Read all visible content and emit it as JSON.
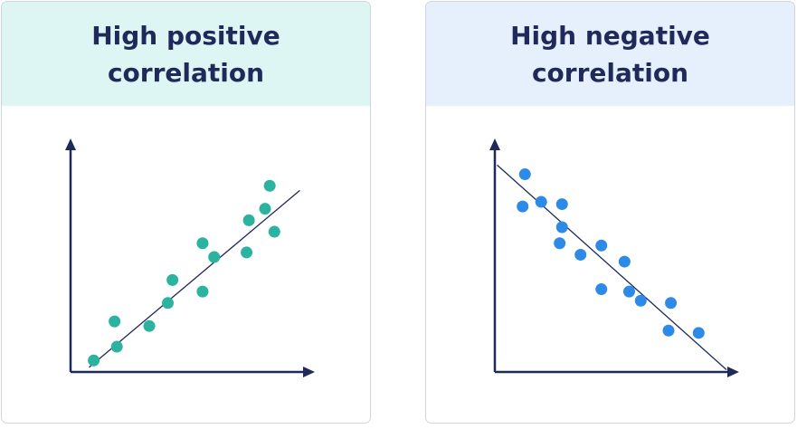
{
  "colors": {
    "axis": "#1f2a5a",
    "text": "#1f2a5a",
    "positive_points": "#2bb3a0",
    "negative_points": "#2d8ae6",
    "positive_header_bg": "#ddf5f3",
    "negative_header_bg": "#e6f0fc"
  },
  "chart_data": [
    {
      "type": "scatter",
      "title": "High positive\ncorrelation",
      "xlabel": "",
      "ylabel": "",
      "xlim": [
        0,
        100
      ],
      "ylim": [
        0,
        100
      ],
      "axis_ticks": false,
      "trend_line": [
        [
          8,
          2
        ],
        [
          99,
          79
        ]
      ],
      "points": [
        {
          "x": 10,
          "y": 5
        },
        {
          "x": 20,
          "y": 11
        },
        {
          "x": 19,
          "y": 22
        },
        {
          "x": 34,
          "y": 20
        },
        {
          "x": 42,
          "y": 30
        },
        {
          "x": 44,
          "y": 40
        },
        {
          "x": 57,
          "y": 35
        },
        {
          "x": 57,
          "y": 56
        },
        {
          "x": 62,
          "y": 50
        },
        {
          "x": 76,
          "y": 52
        },
        {
          "x": 77,
          "y": 66
        },
        {
          "x": 84,
          "y": 71
        },
        {
          "x": 86,
          "y": 81
        },
        {
          "x": 88,
          "y": 61
        }
      ]
    },
    {
      "type": "scatter",
      "title": "High negative\ncorrelation",
      "xlabel": "",
      "ylabel": "",
      "xlim": [
        0,
        100
      ],
      "ylim": [
        0,
        100
      ],
      "axis_ticks": false,
      "trend_line": [
        [
          1,
          90
        ],
        [
          100,
          1
        ]
      ],
      "points": [
        {
          "x": 13,
          "y": 86
        },
        {
          "x": 12,
          "y": 72
        },
        {
          "x": 20,
          "y": 74
        },
        {
          "x": 29,
          "y": 73
        },
        {
          "x": 29,
          "y": 63
        },
        {
          "x": 28,
          "y": 56
        },
        {
          "x": 37,
          "y": 51
        },
        {
          "x": 46,
          "y": 55
        },
        {
          "x": 56,
          "y": 48
        },
        {
          "x": 46,
          "y": 36
        },
        {
          "x": 58,
          "y": 35
        },
        {
          "x": 63,
          "y": 31
        },
        {
          "x": 76,
          "y": 30
        },
        {
          "x": 75,
          "y": 18
        },
        {
          "x": 88,
          "y": 17
        }
      ]
    }
  ]
}
